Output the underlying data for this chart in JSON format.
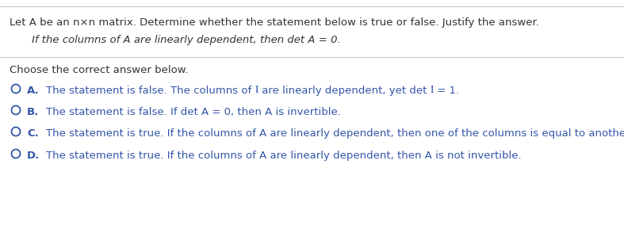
{
  "bg_color": "#ffffff",
  "border_color": "#c8c8c8",
  "dark_text_color": "#333333",
  "blue_color": "#3355aa",
  "header_line1": "Let A be an n×n matrix. Determine whether the statement below is true or false. Justify the answer.",
  "italic_statement": "If the columns of A are linearly dependent, then det A = 0.",
  "choose_text": "Choose the correct answer below.",
  "option_A_p1": "The statement is false. The columns of ",
  "option_A_p2": "I",
  "option_A_p3": " are linearly dependent, yet det ",
  "option_A_p4": "I",
  "option_A_p5": " = 1.",
  "option_B": "The statement is false. If det A = 0, then A is invertible.",
  "option_C": "The statement is true. If the columns of A are linearly dependent, then one of the columns is equal to another.",
  "option_D": "The statement is true. If the columns of A are linearly dependent, then A is not invertible.",
  "letters": [
    "A.",
    "B.",
    "C.",
    "D."
  ],
  "figsize": [
    7.87,
    2.89
  ],
  "dpi": 100
}
